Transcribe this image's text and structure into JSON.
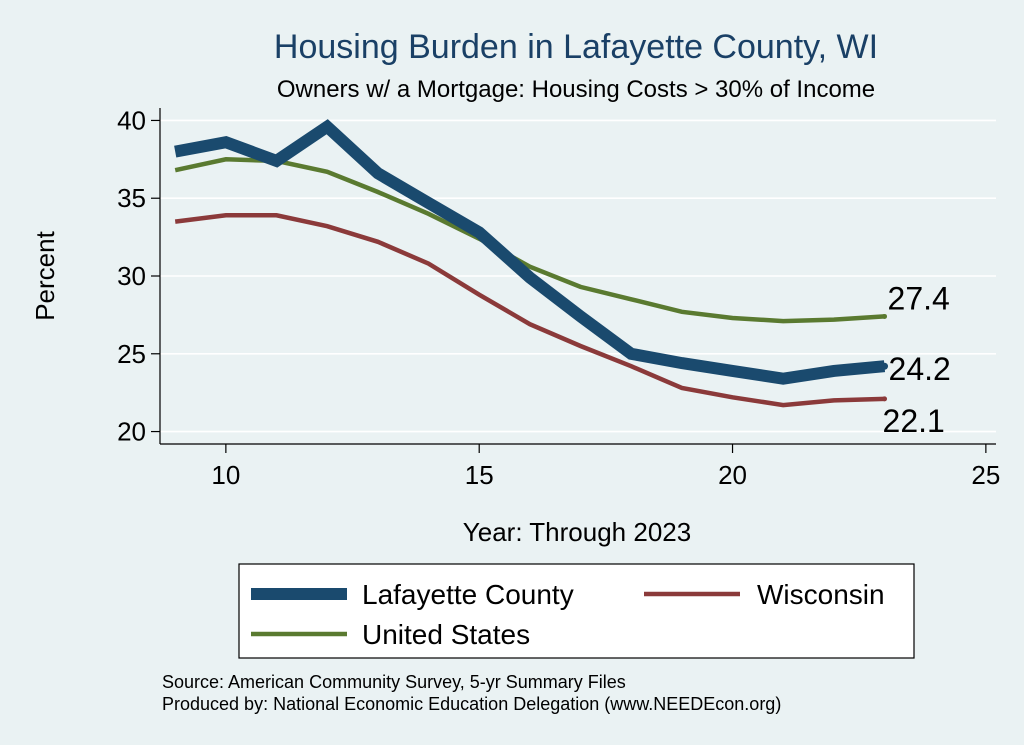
{
  "chart_data": {
    "type": "line",
    "title": "Housing Burden in Lafayette County, WI",
    "subtitle": "Owners w/ a Mortgage: Housing Costs > 30% of Income",
    "xlabel": "Year: Through 2023",
    "ylabel": "Percent",
    "xlim": [
      8.7,
      25.2
    ],
    "ylim": [
      19.2,
      40.8
    ],
    "x_ticks": [
      10,
      15,
      20,
      25
    ],
    "y_ticks": [
      20,
      25,
      30,
      35,
      40
    ],
    "grid": true,
    "legend_position": "bottom",
    "x": [
      9,
      10,
      11,
      12,
      13,
      14,
      15,
      16,
      17,
      18,
      19,
      20,
      21,
      22,
      23
    ],
    "series": [
      {
        "name": "Lafayette County",
        "color": "#1a4a6e",
        "values": [
          38.0,
          38.6,
          37.4,
          39.6,
          36.6,
          34.7,
          32.8,
          29.9,
          27.4,
          25.0,
          24.4,
          23.9,
          23.4,
          23.9,
          24.2
        ],
        "end_label": "24.2"
      },
      {
        "name": "Wisconsin",
        "color": "#8b3a3a",
        "values": [
          33.5,
          33.9,
          33.9,
          33.2,
          32.2,
          30.8,
          28.8,
          26.9,
          25.5,
          24.2,
          22.8,
          22.2,
          21.7,
          22.0,
          22.1
        ],
        "end_label": "22.1"
      },
      {
        "name": "United States",
        "color": "#5a7a30",
        "values": [
          36.8,
          37.5,
          37.4,
          36.7,
          35.4,
          34.0,
          32.4,
          30.6,
          29.3,
          28.5,
          27.7,
          27.3,
          27.1,
          27.2,
          27.4
        ],
        "end_label": "27.4"
      }
    ]
  },
  "notes": {
    "source": "Source: American Community Survey, 5-yr Summary Files",
    "produced": "Produced by: National Economic Education Delegation (www.NEEDEcon.org)"
  }
}
